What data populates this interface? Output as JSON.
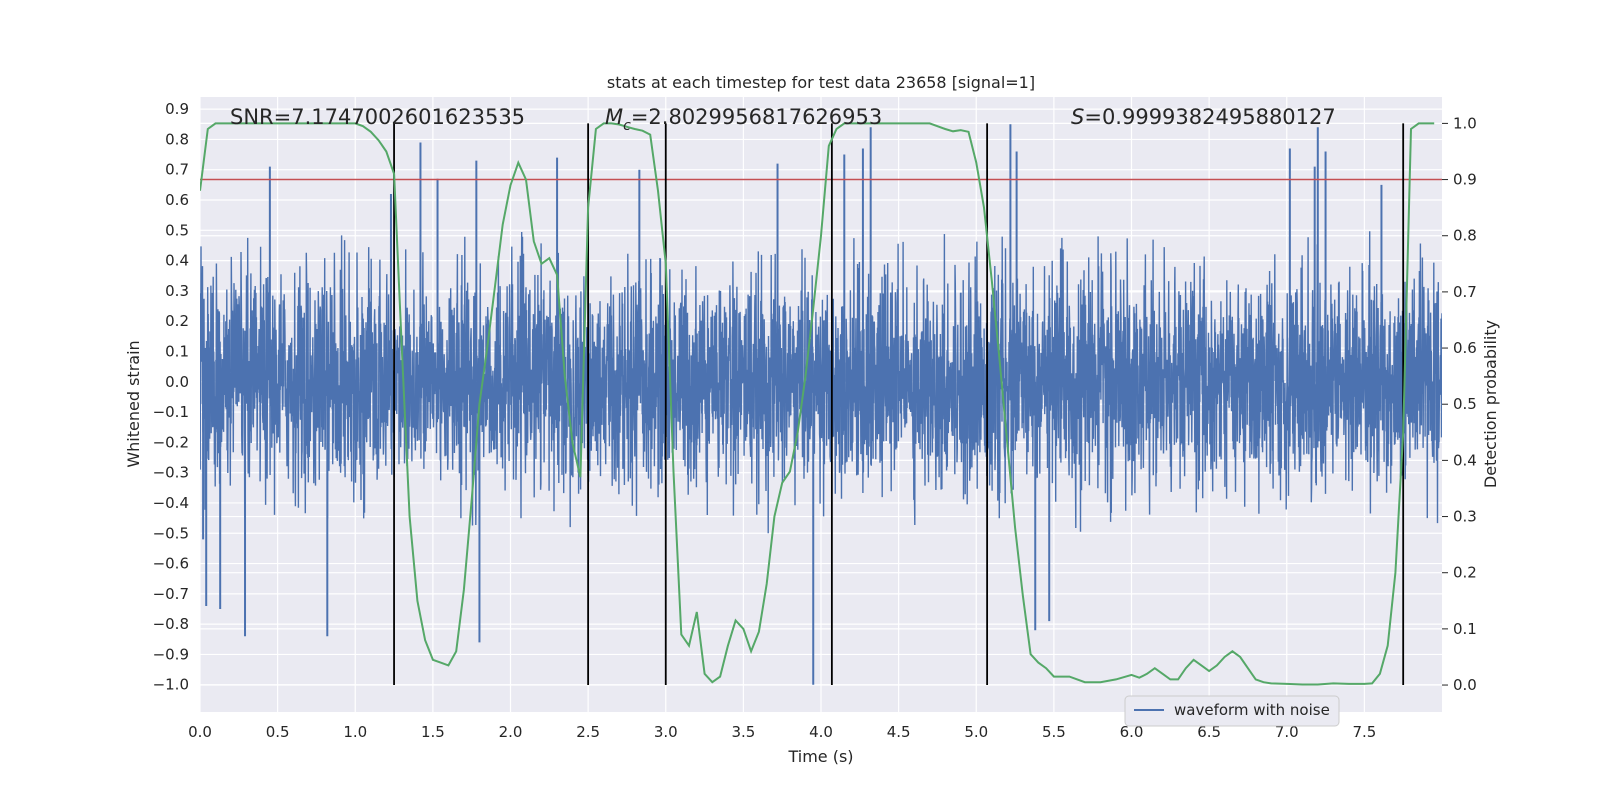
{
  "chart_data": {
    "type": "line",
    "title": "stats at each timestep for test data 23658 [signal=1]",
    "xlabel": "Time (s)",
    "ylabel": "Whitened strain",
    "y2label": "Detection probability",
    "xlim": [
      0.0,
      8.0
    ],
    "ylim": [
      -1.09,
      0.94
    ],
    "y2lim": [
      -0.048,
      1.047
    ],
    "x_ticks": [
      "0.0",
      "0.5",
      "1.0",
      "1.5",
      "2.0",
      "2.5",
      "3.0",
      "3.5",
      "4.0",
      "4.5",
      "5.0",
      "5.5",
      "6.0",
      "6.5",
      "7.0",
      "7.5"
    ],
    "y_ticks": [
      "0.9",
      "0.8",
      "0.7",
      "0.6",
      "0.5",
      "0.4",
      "0.3",
      "0.2",
      "0.1",
      "0.0",
      "-0.1",
      "-0.2",
      "-0.3",
      "-0.4",
      "-0.5",
      "-0.6",
      "-0.7",
      "-0.8",
      "-0.9",
      "-1.0"
    ],
    "y2_ticks": [
      "1.0",
      "0.9",
      "0.8",
      "0.7",
      "0.6",
      "0.5",
      "0.4",
      "0.3",
      "0.2",
      "0.1",
      "0.0"
    ],
    "annotations": {
      "snr": "SNR=7.1747002601623535",
      "mc_symbol": "M",
      "mc_sub": "c",
      "mc_value": "=2.8029956817626953",
      "s_symbol": "S",
      "s_value": "=0.9999382495880127"
    },
    "legend": {
      "label": "waveform with noise",
      "position": "bottom-right"
    },
    "threshold_line": {
      "y2": 0.9,
      "color": "#c44e52"
    },
    "vertical_lines_x": [
      1.25,
      2.5,
      3.0,
      4.07,
      5.07,
      7.75
    ],
    "waveform": {
      "name": "waveform with noise",
      "color": "#4c72b0",
      "noise_sigma": 0.17,
      "typical_max": 0.5,
      "spikes": [
        {
          "x": 0.02,
          "y": -0.52
        },
        {
          "x": 0.04,
          "y": -0.74
        },
        {
          "x": 0.13,
          "y": -0.75
        },
        {
          "x": 0.29,
          "y": -0.84
        },
        {
          "x": 0.45,
          "y": 0.71
        },
        {
          "x": 0.82,
          "y": -0.84
        },
        {
          "x": 1.23,
          "y": 0.62
        },
        {
          "x": 1.42,
          "y": 0.79
        },
        {
          "x": 1.53,
          "y": 0.67
        },
        {
          "x": 1.78,
          "y": 0.73
        },
        {
          "x": 1.8,
          "y": -0.86
        },
        {
          "x": 2.3,
          "y": 0.74
        },
        {
          "x": 2.83,
          "y": 0.7
        },
        {
          "x": 3.72,
          "y": 0.72
        },
        {
          "x": 3.95,
          "y": -1.0
        },
        {
          "x": 4.15,
          "y": 0.75
        },
        {
          "x": 4.27,
          "y": 0.77
        },
        {
          "x": 4.32,
          "y": 0.84
        },
        {
          "x": 5.22,
          "y": 0.85
        },
        {
          "x": 5.26,
          "y": 0.76
        },
        {
          "x": 5.38,
          "y": -0.82
        },
        {
          "x": 5.47,
          "y": -0.79
        },
        {
          "x": 7.02,
          "y": 0.77
        },
        {
          "x": 7.18,
          "y": 0.71
        },
        {
          "x": 7.2,
          "y": 0.84
        },
        {
          "x": 7.25,
          "y": 0.76
        },
        {
          "x": 7.61,
          "y": 0.65
        }
      ]
    },
    "probability": {
      "name": "detection probability",
      "color": "#55a868",
      "x": [
        0.0,
        0.05,
        0.1,
        0.2,
        0.4,
        0.6,
        0.8,
        0.95,
        1.0,
        1.05,
        1.1,
        1.15,
        1.2,
        1.25,
        1.3,
        1.35,
        1.4,
        1.45,
        1.5,
        1.55,
        1.6,
        1.65,
        1.7,
        1.75,
        1.8,
        1.85,
        1.9,
        1.95,
        2.0,
        2.05,
        2.1,
        2.15,
        2.2,
        2.25,
        2.3,
        2.35,
        2.4,
        2.45,
        2.5,
        2.55,
        2.6,
        2.65,
        2.7,
        2.75,
        2.8,
        2.85,
        2.9,
        2.95,
        3.0,
        3.05,
        3.1,
        3.15,
        3.2,
        3.25,
        3.3,
        3.35,
        3.4,
        3.45,
        3.5,
        3.55,
        3.6,
        3.65,
        3.7,
        3.75,
        3.8,
        3.85,
        3.9,
        3.95,
        4.0,
        4.05,
        4.1,
        4.15,
        4.2,
        4.25,
        4.3,
        4.4,
        4.5,
        4.7,
        4.8,
        4.85,
        4.9,
        4.95,
        5.0,
        5.05,
        5.1,
        5.15,
        5.2,
        5.25,
        5.3,
        5.35,
        5.4,
        5.45,
        5.5,
        5.55,
        5.6,
        5.7,
        5.8,
        5.9,
        6.0,
        6.05,
        6.1,
        6.15,
        6.2,
        6.25,
        6.3,
        6.35,
        6.4,
        6.45,
        6.5,
        6.55,
        6.6,
        6.65,
        6.7,
        6.75,
        6.8,
        6.85,
        6.9,
        7.0,
        7.1,
        7.2,
        7.3,
        7.4,
        7.5,
        7.55,
        7.6,
        7.65,
        7.7,
        7.75,
        7.8,
        7.85,
        7.9,
        7.95
      ],
      "y": [
        0.88,
        0.99,
        1.0,
        1.0,
        1.0,
        1.0,
        1.0,
        1.0,
        1.0,
        0.995,
        0.985,
        0.97,
        0.95,
        0.91,
        0.6,
        0.3,
        0.15,
        0.08,
        0.045,
        0.04,
        0.035,
        0.06,
        0.17,
        0.33,
        0.5,
        0.6,
        0.71,
        0.82,
        0.89,
        0.93,
        0.9,
        0.79,
        0.75,
        0.76,
        0.73,
        0.55,
        0.43,
        0.37,
        0.85,
        0.99,
        1.0,
        1.0,
        0.998,
        0.994,
        0.99,
        0.987,
        0.98,
        0.88,
        0.75,
        0.38,
        0.09,
        0.07,
        0.13,
        0.02,
        0.005,
        0.015,
        0.07,
        0.115,
        0.1,
        0.06,
        0.095,
        0.18,
        0.3,
        0.36,
        0.38,
        0.45,
        0.55,
        0.67,
        0.8,
        0.96,
        0.99,
        1.0,
        1.0,
        1.0,
        1.0,
        1.0,
        1.0,
        1.0,
        0.99,
        0.986,
        0.988,
        0.985,
        0.93,
        0.85,
        0.72,
        0.58,
        0.43,
        0.28,
        0.16,
        0.055,
        0.04,
        0.03,
        0.015,
        0.015,
        0.015,
        0.005,
        0.005,
        0.01,
        0.018,
        0.013,
        0.02,
        0.03,
        0.02,
        0.01,
        0.01,
        0.03,
        0.045,
        0.035,
        0.025,
        0.035,
        0.05,
        0.06,
        0.05,
        0.03,
        0.01,
        0.005,
        0.003,
        0.002,
        0.001,
        0.001,
        0.003,
        0.002,
        0.002,
        0.003,
        0.02,
        0.07,
        0.2,
        0.45,
        0.99,
        1.0,
        1.0,
        1.0
      ]
    }
  }
}
